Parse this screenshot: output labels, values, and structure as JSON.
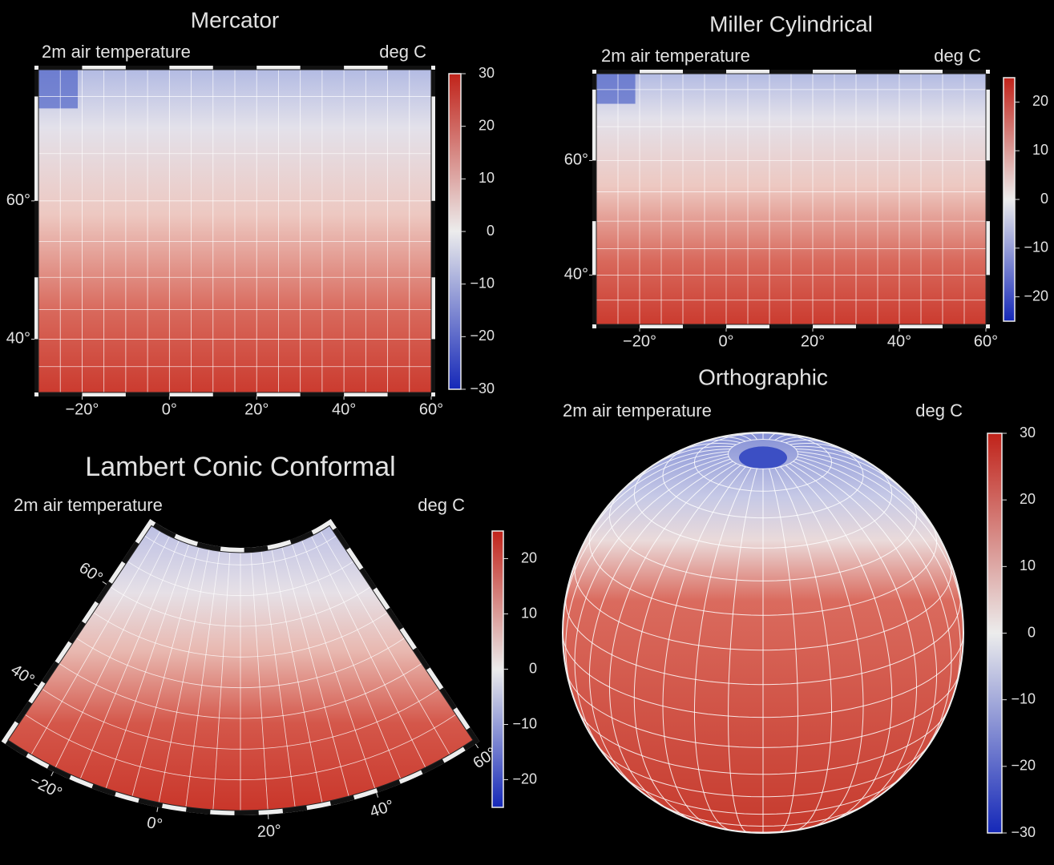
{
  "panels": [
    {
      "title": "Mercator",
      "subtitle": "2m air temperature",
      "units": "deg C",
      "xlim": [
        -30,
        60
      ],
      "ylim": [
        30,
        72
      ],
      "xticks": [
        {
          "value": -20,
          "label": "−20°"
        },
        {
          "value": 0,
          "label": "0°"
        },
        {
          "value": 20,
          "label": "20°"
        },
        {
          "value": 40,
          "label": "40°"
        },
        {
          "value": 60,
          "label": "60°"
        }
      ],
      "yticks": [
        {
          "value": 40,
          "label": "40°"
        },
        {
          "value": 60,
          "label": "60°"
        }
      ],
      "colorbar": {
        "lim": [
          -30,
          30
        ],
        "ticks": [
          30,
          20,
          10,
          0,
          {
            "value": -10,
            "label": "−10"
          },
          {
            "value": -20,
            "label": "−20"
          },
          {
            "value": -30,
            "label": "−30"
          }
        ]
      }
    },
    {
      "title": "Miller Cylindrical",
      "subtitle": "2m air temperature",
      "units": "deg C",
      "xlim": [
        -30,
        60
      ],
      "ylim": [
        30,
        72
      ],
      "xticks": [
        {
          "value": -20,
          "label": "−20°"
        },
        {
          "value": 0,
          "label": "0°"
        },
        {
          "value": 20,
          "label": "20°"
        },
        {
          "value": 40,
          "label": "40°"
        },
        {
          "value": 60,
          "label": "60°"
        }
      ],
      "yticks": [
        {
          "value": 40,
          "label": "40°"
        },
        {
          "value": 60,
          "label": "60°"
        }
      ],
      "colorbar": {
        "lim": [
          -25,
          25
        ],
        "ticks": [
          20,
          10,
          0,
          {
            "value": -10,
            "label": "−10"
          },
          {
            "value": -20,
            "label": "−20"
          }
        ]
      }
    },
    {
      "title": "Lambert Conic Conformal",
      "subtitle": "2m air temperature",
      "units": "deg C",
      "xlim": [
        -30,
        60
      ],
      "ylim": [
        30,
        72
      ],
      "xticks": [
        {
          "value": -20,
          "label": "−20°"
        },
        {
          "value": 0,
          "label": "0°"
        },
        {
          "value": 20,
          "label": "20°"
        },
        {
          "value": 40,
          "label": "40°"
        },
        {
          "value": 60,
          "label": "60°"
        }
      ],
      "yticks": [
        {
          "value": 40,
          "label": "40°"
        },
        {
          "value": 60,
          "label": "60°"
        }
      ],
      "colorbar": {
        "lim": [
          -25,
          25
        ],
        "ticks": [
          20,
          10,
          0,
          {
            "value": -10,
            "label": "−10"
          },
          {
            "value": -20,
            "label": "−20"
          }
        ]
      }
    },
    {
      "title": "Orthographic",
      "subtitle": "2m air temperature",
      "units": "deg C",
      "colorbar": {
        "lim": [
          -30,
          30
        ],
        "ticks": [
          30,
          20,
          10,
          0,
          {
            "value": -10,
            "label": "−10"
          },
          {
            "value": -20,
            "label": "−20"
          },
          {
            "value": -30,
            "label": "−30"
          }
        ]
      }
    }
  ]
}
